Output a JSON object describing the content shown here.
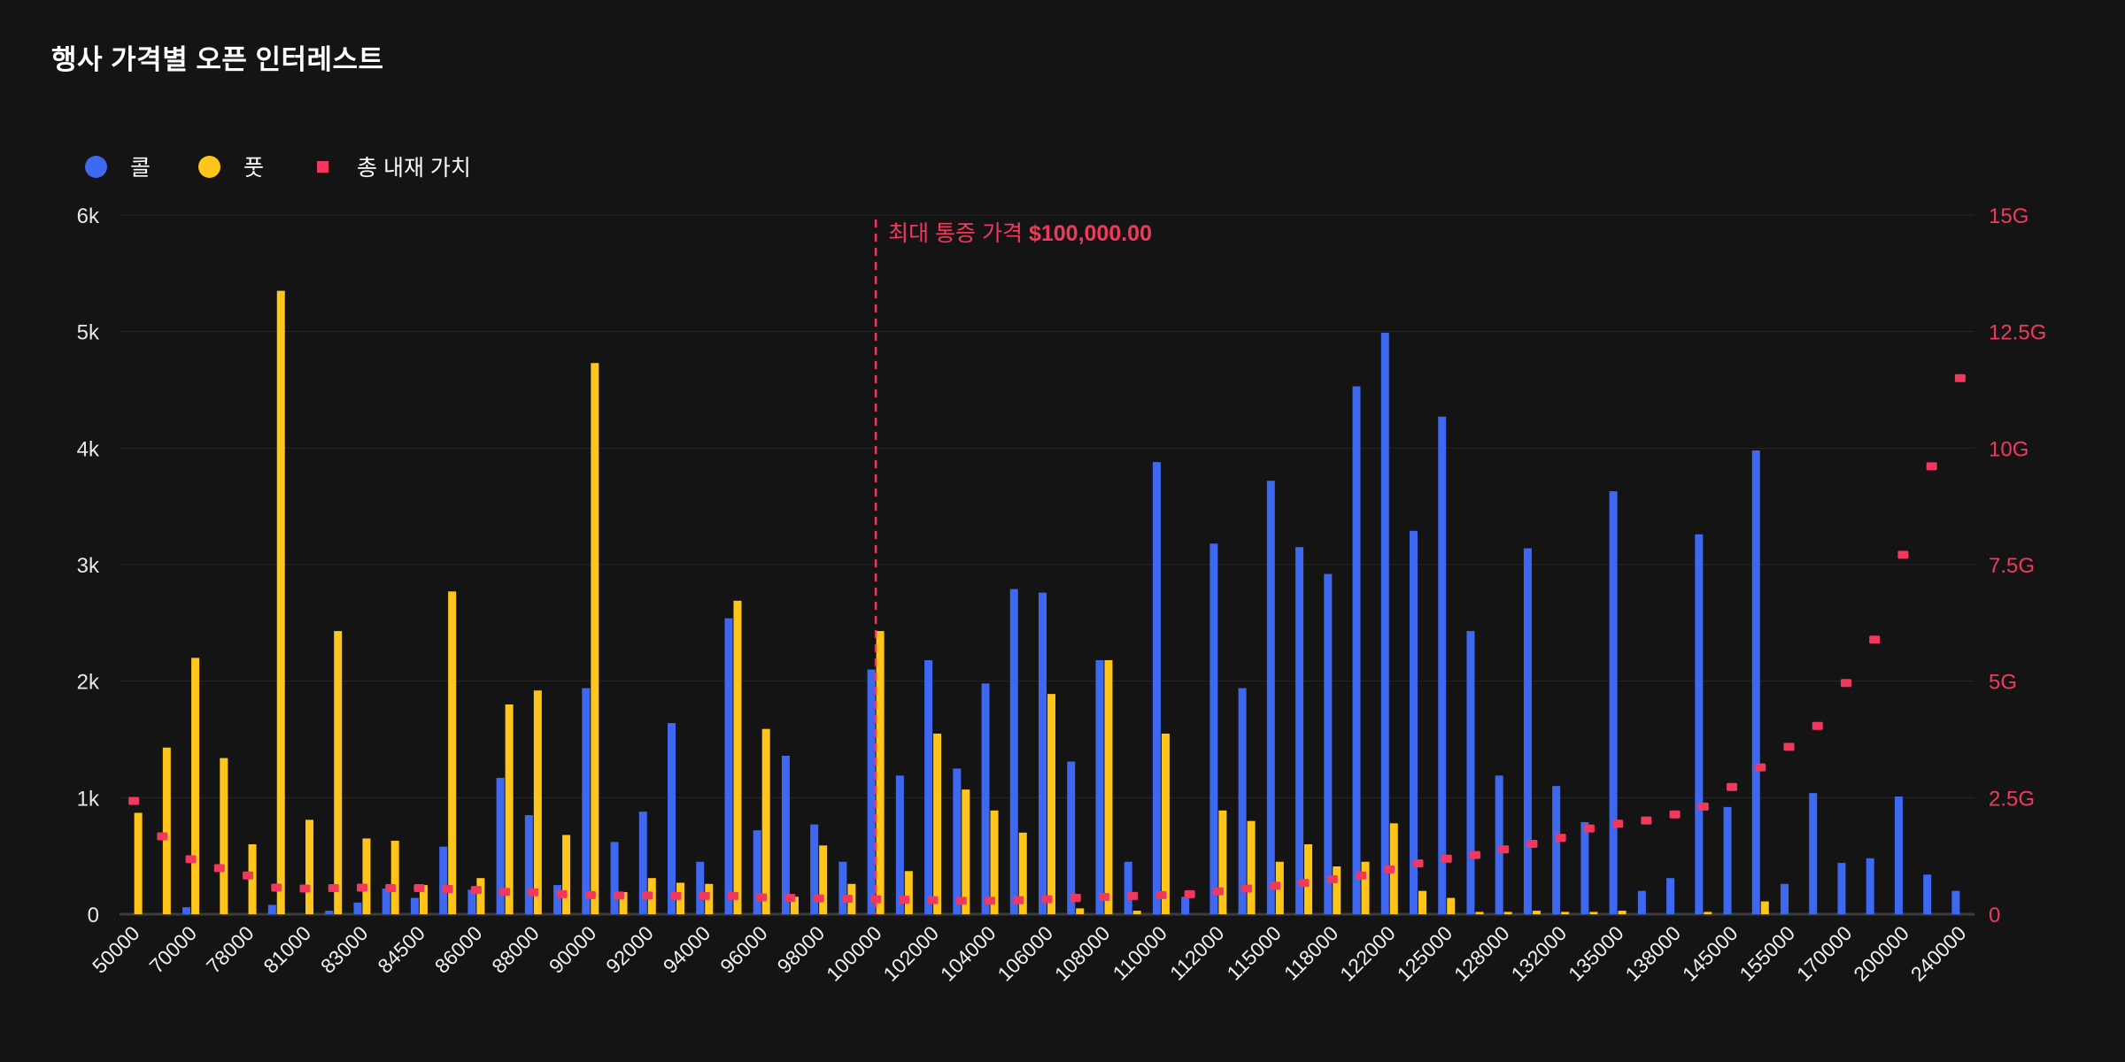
{
  "title": "행사 가격별 오픈 인터레스트",
  "legend": {
    "call": "콜",
    "put": "풋",
    "intrinsic": "총 내재 가치"
  },
  "annotation": {
    "prefix": "최대 통증 가격 ",
    "price": "$100,000.00"
  },
  "colors": {
    "call": "#3D68EF",
    "put": "#FFC51A",
    "intrinsic": "#F1395E",
    "background": "#141414",
    "grid": "#262626",
    "baseline": "#3d3d3d",
    "axis_text": "#e8e8e8",
    "right_axis_text": "#F1395E"
  },
  "chart_data": {
    "type": "bar",
    "title": "행사 가격별 오픈 인터레스트",
    "legend_position": "top-left",
    "grid": true,
    "y_left": {
      "ticks": [
        "0",
        "1k",
        "2k",
        "3k",
        "4k",
        "5k",
        "6k"
      ],
      "max": 6000
    },
    "y_right": {
      "ticks": [
        "0",
        "2.5G",
        "5G",
        "7.5G",
        "10G",
        "12.5G",
        "15G"
      ],
      "max": 15
    },
    "x_visible_labels": [
      "50000",
      "70000",
      "78000",
      "81000",
      "83000",
      "84500",
      "86000",
      "88000",
      "90000",
      "92000",
      "94000",
      "96000",
      "98000",
      "100000",
      "102000",
      "104000",
      "106000",
      "108000",
      "110000",
      "112000",
      "115000",
      "118000",
      "122000",
      "125000",
      "128000",
      "132000",
      "135000",
      "138000",
      "145000",
      "155000",
      "170000",
      "200000",
      "240000"
    ],
    "max_pain_index": 26,
    "max_pain_label": "최대 통증 가격 $100,000.00",
    "labels": [
      "50000",
      "",
      "70000",
      "",
      "78000",
      "",
      "81000",
      "",
      "83000",
      "",
      "84500",
      "",
      "86000",
      "",
      "88000",
      "",
      "90000",
      "",
      "92000",
      "",
      "94000",
      "",
      "96000",
      "",
      "98000",
      "",
      "100000",
      "",
      "102000",
      "",
      "104000",
      "",
      "106000",
      "",
      "108000",
      "",
      "110000",
      "",
      "112000",
      "",
      "115000",
      "",
      "118000",
      "",
      "122000",
      "",
      "125000",
      "",
      "128000",
      "",
      "132000",
      "",
      "135000",
      "",
      "138000",
      "",
      "145000",
      "",
      "155000",
      "",
      "170000",
      "",
      "200000",
      "",
      "240000"
    ],
    "series": [
      {
        "name": "콜",
        "axis": "left",
        "kind": "bar",
        "values": [
          0,
          0,
          60,
          0,
          0,
          80,
          0,
          30,
          100,
          220,
          140,
          580,
          210,
          1170,
          850,
          250,
          1940,
          620,
          880,
          1640,
          450,
          2540,
          720,
          1360,
          770,
          450,
          2100,
          1190,
          2180,
          1250,
          1980,
          2790,
          2760,
          1310,
          2180,
          450,
          3880,
          150,
          3180,
          1940,
          3720,
          3150,
          2920,
          4530,
          4990,
          3290,
          4270,
          2430,
          1190,
          3140,
          1100,
          790,
          3630,
          200,
          310,
          3260,
          920,
          3980,
          260,
          1040,
          440,
          480,
          1010,
          340,
          200
        ]
      },
      {
        "name": "풋",
        "axis": "left",
        "kind": "bar",
        "values": [
          870,
          1430,
          2200,
          1340,
          600,
          5350,
          810,
          2430,
          650,
          630,
          250,
          2770,
          310,
          1800,
          1920,
          680,
          4730,
          190,
          310,
          270,
          260,
          2690,
          1590,
          150,
          590,
          260,
          2430,
          370,
          1550,
          1070,
          890,
          700,
          1890,
          50,
          2180,
          30,
          1550,
          0,
          890,
          800,
          450,
          600,
          410,
          450,
          780,
          200,
          140,
          20,
          20,
          30,
          20,
          20,
          30,
          0,
          0,
          20,
          0,
          110,
          0,
          0,
          0,
          0,
          0,
          0,
          0
        ]
      },
      {
        "name": "총 내재 가치",
        "axis": "right",
        "kind": "scatter",
        "unit": "G",
        "values": [
          2.44,
          1.68,
          1.19,
          1.0,
          0.84,
          0.58,
          0.56,
          0.57,
          0.58,
          0.57,
          0.57,
          0.55,
          0.53,
          0.49,
          0.48,
          0.44,
          0.42,
          0.41,
          0.41,
          0.4,
          0.4,
          0.4,
          0.37,
          0.36,
          0.35,
          0.34,
          0.33,
          0.32,
          0.31,
          0.3,
          0.3,
          0.31,
          0.33,
          0.36,
          0.38,
          0.4,
          0.42,
          0.44,
          0.5,
          0.56,
          0.62,
          0.68,
          0.76,
          0.84,
          0.97,
          1.1,
          1.2,
          1.28,
          1.4,
          1.52,
          1.65,
          1.85,
          1.95,
          2.02,
          2.15,
          2.32,
          2.74,
          3.16,
          3.6,
          4.05,
          4.97,
          5.9,
          7.72,
          9.62,
          11.51
        ]
      }
    ]
  }
}
